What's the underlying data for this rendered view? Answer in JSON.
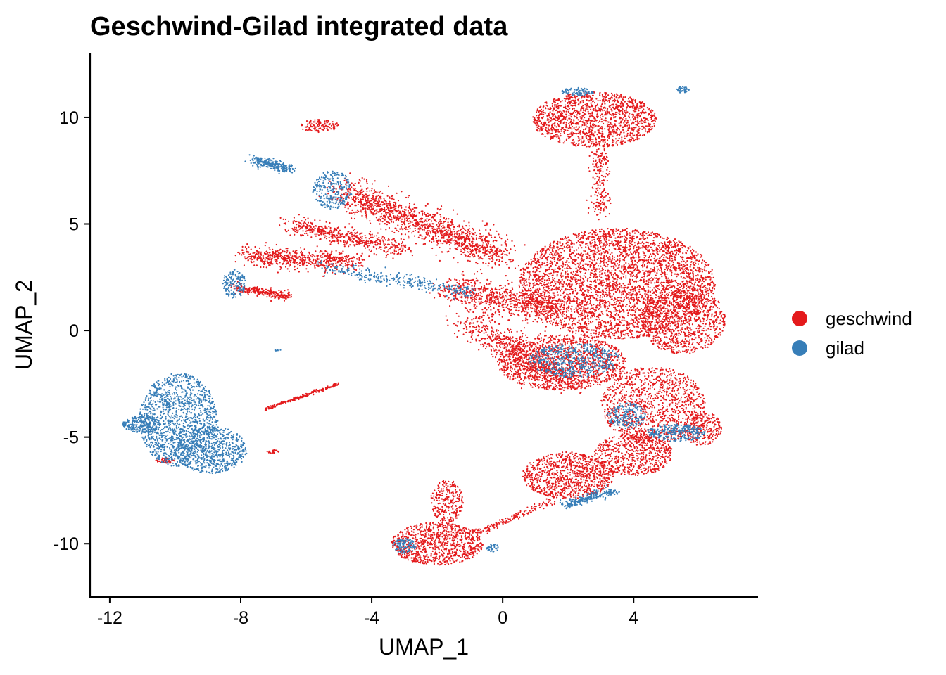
{
  "chart_data": {
    "type": "scatter",
    "title": "Geschwind-Gilad integrated data",
    "xlabel": "UMAP_1",
    "ylabel": "UMAP_2",
    "xlim": [
      -12.6,
      7.8
    ],
    "ylim": [
      -12.5,
      13.0
    ],
    "x_ticks": [
      -12,
      -8,
      -4,
      0,
      4
    ],
    "x_tick_labels": [
      "-12",
      "-8",
      "-4",
      "0",
      "4"
    ],
    "y_ticks": [
      -10,
      -5,
      0,
      5,
      10
    ],
    "y_tick_labels": [
      "-10",
      "-5",
      "0",
      "5",
      "10"
    ],
    "grid": false,
    "legend_position": "right",
    "series": [
      {
        "name": "geschwind",
        "color": "#E41A1C",
        "regions": [
          {
            "shape": "ellipse",
            "cx": 3.5,
            "cy": 2.2,
            "rx": 3.0,
            "ry": 2.6,
            "n": 3800
          },
          {
            "shape": "ellipse",
            "cx": 5.5,
            "cy": 0.5,
            "rx": 1.3,
            "ry": 1.6,
            "n": 900
          },
          {
            "shape": "ellipse",
            "cx": 1.8,
            "cy": -1.5,
            "rx": 2.0,
            "ry": 1.3,
            "n": 1300
          },
          {
            "shape": "ellipse",
            "cx": 4.6,
            "cy": -3.5,
            "rx": 1.6,
            "ry": 1.8,
            "n": 1100
          },
          {
            "shape": "ellipse",
            "cx": 6.1,
            "cy": -4.6,
            "rx": 0.6,
            "ry": 0.8,
            "n": 250
          },
          {
            "shape": "ellipse",
            "cx": 2.8,
            "cy": 9.9,
            "rx": 1.9,
            "ry": 1.3,
            "n": 1400
          },
          {
            "shape": "segment",
            "x1": 3.0,
            "y1": 8.5,
            "x2": 3.0,
            "y2": 5.5,
            "w": 0.35,
            "n": 200
          },
          {
            "shape": "segment",
            "x1": -4.8,
            "y1": 6.5,
            "x2": 0.0,
            "y2": 3.5,
            "w": 0.9,
            "n": 1400
          },
          {
            "shape": "segment",
            "x1": -1.5,
            "y1": 2.0,
            "x2": 1.5,
            "y2": 1.0,
            "w": 0.9,
            "n": 700
          },
          {
            "shape": "segment",
            "x1": -1.0,
            "y1": 0.5,
            "x2": 2.0,
            "y2": -2.5,
            "w": 0.9,
            "n": 700
          },
          {
            "shape": "segment",
            "x1": -6.5,
            "y1": 5.0,
            "x2": -3.0,
            "y2": 3.8,
            "w": 0.5,
            "n": 500
          },
          {
            "shape": "segment",
            "x1": -7.8,
            "y1": 3.5,
            "x2": -4.5,
            "y2": 3.2,
            "w": 0.6,
            "n": 600
          },
          {
            "shape": "segment",
            "x1": -8.2,
            "y1": 2.0,
            "x2": -6.5,
            "y2": 1.6,
            "w": 0.25,
            "n": 250
          },
          {
            "shape": "ellipse",
            "cx": -5.6,
            "cy": 9.6,
            "rx": 0.6,
            "ry": 0.3,
            "n": 120
          },
          {
            "shape": "ellipse",
            "cx": 2.0,
            "cy": -6.8,
            "rx": 1.4,
            "ry": 1.1,
            "n": 900
          },
          {
            "shape": "ellipse",
            "cx": 4.0,
            "cy": -5.8,
            "rx": 1.2,
            "ry": 1.0,
            "n": 600
          },
          {
            "shape": "ellipse",
            "cx": -2.0,
            "cy": -10.0,
            "rx": 1.4,
            "ry": 1.0,
            "n": 900
          },
          {
            "shape": "ellipse",
            "cx": -1.7,
            "cy": -8.0,
            "rx": 0.5,
            "ry": 1.0,
            "n": 250
          },
          {
            "shape": "segment",
            "x1": -0.8,
            "y1": -9.5,
            "x2": 1.5,
            "y2": -8.0,
            "w": 0.2,
            "n": 150
          },
          {
            "shape": "segment",
            "x1": -7.3,
            "y1": -3.7,
            "x2": -5.0,
            "y2": -2.5,
            "w": 0.08,
            "n": 200
          },
          {
            "shape": "ellipse",
            "cx": -10.3,
            "cy": -6.1,
            "rx": 0.3,
            "ry": 0.12,
            "n": 50
          },
          {
            "shape": "ellipse",
            "cx": -7.0,
            "cy": -5.7,
            "rx": 0.2,
            "ry": 0.1,
            "n": 20
          }
        ]
      },
      {
        "name": "gilad",
        "color": "#377EB8",
        "regions": [
          {
            "shape": "ellipse",
            "cx": -9.9,
            "cy": -4.2,
            "rx": 1.2,
            "ry": 2.2,
            "n": 1300
          },
          {
            "shape": "ellipse",
            "cx": -8.9,
            "cy": -5.6,
            "rx": 1.1,
            "ry": 1.1,
            "n": 700
          },
          {
            "shape": "ellipse",
            "cx": -11.0,
            "cy": -4.4,
            "rx": 0.6,
            "ry": 0.4,
            "n": 220
          },
          {
            "shape": "segment",
            "x1": -7.6,
            "y1": 8.0,
            "x2": -6.5,
            "y2": 7.6,
            "w": 0.3,
            "n": 250
          },
          {
            "shape": "ellipse",
            "cx": -5.2,
            "cy": 6.6,
            "rx": 0.6,
            "ry": 0.9,
            "n": 250
          },
          {
            "shape": "ellipse",
            "cx": -8.2,
            "cy": 2.2,
            "rx": 0.35,
            "ry": 0.7,
            "n": 150
          },
          {
            "shape": "segment",
            "x1": -5.5,
            "y1": 3.0,
            "x2": -1.0,
            "y2": 1.8,
            "w": 0.4,
            "n": 300
          },
          {
            "shape": "ellipse",
            "cx": 2.2,
            "cy": -1.4,
            "rx": 1.4,
            "ry": 0.8,
            "n": 500
          },
          {
            "shape": "ellipse",
            "cx": 5.3,
            "cy": -4.8,
            "rx": 0.9,
            "ry": 0.4,
            "n": 300
          },
          {
            "shape": "ellipse",
            "cx": 3.8,
            "cy": -4.0,
            "rx": 0.6,
            "ry": 0.6,
            "n": 200
          },
          {
            "shape": "ellipse",
            "cx": 2.3,
            "cy": 11.2,
            "rx": 0.5,
            "ry": 0.2,
            "n": 80
          },
          {
            "shape": "ellipse",
            "cx": 5.5,
            "cy": 11.3,
            "rx": 0.2,
            "ry": 0.15,
            "n": 40
          },
          {
            "shape": "segment",
            "x1": 1.8,
            "y1": -8.2,
            "x2": 3.5,
            "y2": -7.5,
            "w": 0.25,
            "n": 200
          },
          {
            "shape": "ellipse",
            "cx": -3.0,
            "cy": -10.1,
            "rx": 0.35,
            "ry": 0.35,
            "n": 100
          },
          {
            "shape": "ellipse",
            "cx": -0.3,
            "cy": -10.2,
            "rx": 0.2,
            "ry": 0.2,
            "n": 40
          },
          {
            "shape": "segment",
            "x1": -7.0,
            "y1": -0.95,
            "x2": -6.8,
            "y2": -0.9,
            "w": 0.05,
            "n": 10
          }
        ]
      }
    ]
  }
}
